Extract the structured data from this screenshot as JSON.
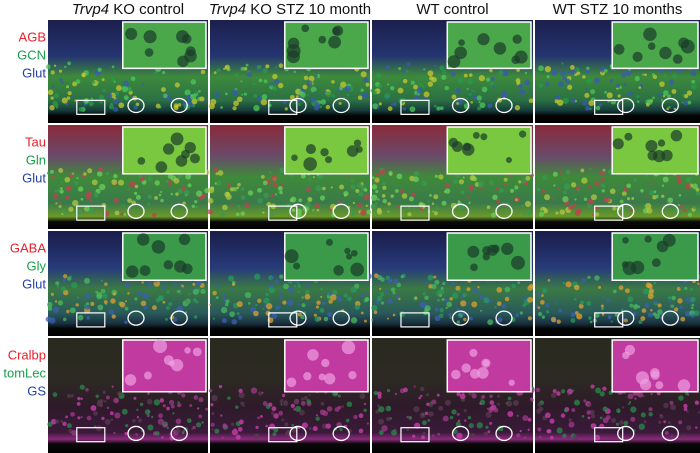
{
  "columns": [
    {
      "italic": "Trvp4",
      "rest": "KO control"
    },
    {
      "italic": "Trvp4",
      "rest": "KO STZ 10 month"
    },
    {
      "italic": null,
      "rest": "WT control"
    },
    {
      "italic": null,
      "rest": "WT STZ 10 months"
    }
  ],
  "rows": [
    {
      "labels": [
        "AGB",
        "GCN",
        "Glut"
      ]
    },
    {
      "labels": [
        "Tau",
        "Gln",
        "Glut"
      ]
    },
    {
      "labels": [
        "GABA",
        "Gly",
        "Glut"
      ]
    },
    {
      "labels": [
        "Cralbp",
        "tomLec",
        "GS"
      ]
    }
  ],
  "label_colors": [
    "#e8202a",
    "#17a04a",
    "#2340a8"
  ]
}
